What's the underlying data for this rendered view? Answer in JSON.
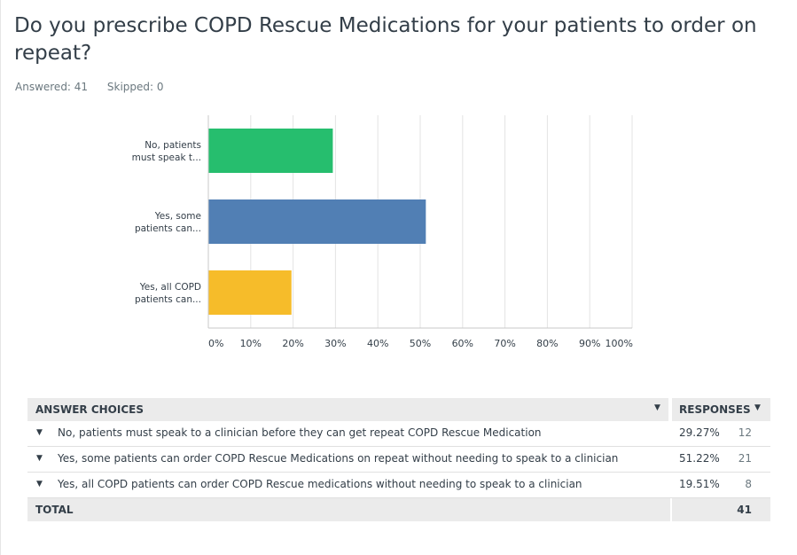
{
  "question": "Do you prescribe COPD Rescue Medications for your patients to order on repeat?",
  "answered": "Answered: 41",
  "skipped": "Skipped: 0",
  "chart_data": {
    "type": "bar",
    "orientation": "horizontal",
    "categories": [
      "No, patients must speak t...",
      "Yes, some patients can...",
      "Yes, all COPD patients can..."
    ],
    "category_lines": [
      [
        "No, patients",
        "must speak t..."
      ],
      [
        "Yes, some",
        "patients can..."
      ],
      [
        "Yes, all COPD",
        "patients can..."
      ]
    ],
    "values": [
      29.27,
      51.22,
      19.51
    ],
    "colors": [
      "#26be6e",
      "#517fb4",
      "#f6bc2a"
    ],
    "xlim": [
      0,
      100
    ],
    "x_ticks": [
      "0%",
      "10%",
      "20%",
      "30%",
      "40%",
      "50%",
      "60%",
      "70%",
      "80%",
      "90%",
      "100%"
    ],
    "grid": true,
    "title": "",
    "xlabel": "",
    "ylabel": ""
  },
  "table": {
    "header_choices": "ANSWER CHOICES",
    "header_responses": "RESPONSES",
    "rows": [
      {
        "label": "No, patients must speak to a clinician before they can get repeat COPD Rescue Medication",
        "pct": "29.27%",
        "count": "12"
      },
      {
        "label": "Yes, some patients can order COPD Rescue Medications on repeat without needing to speak to a clinician",
        "pct": "51.22%",
        "count": "21"
      },
      {
        "label": "Yes, all COPD patients can order COPD Rescue medications without needing to speak to a clinician",
        "pct": "19.51%",
        "count": "8"
      }
    ],
    "total_label": "TOTAL",
    "total_count": "41"
  }
}
